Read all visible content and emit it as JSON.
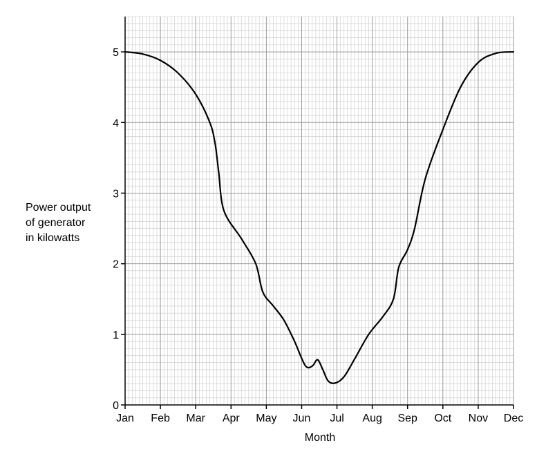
{
  "chart_data": {
    "type": "line",
    "title": "",
    "xlabel": "Month",
    "ylabel_lines": [
      "Power output",
      "of generator",
      "in kilowatts"
    ],
    "x_categories": [
      "Jan",
      "Feb",
      "Mar",
      "Apr",
      "May",
      "Jun",
      "Jul",
      "Aug",
      "Sep",
      "Oct",
      "Nov",
      "Dec"
    ],
    "xlim": [
      0,
      11
    ],
    "ylim": [
      0,
      5.5
    ],
    "y_ticks": [
      0,
      1,
      2,
      3,
      4,
      5
    ],
    "grid": true,
    "line_color": "#000000",
    "grid_major_color": "#999999",
    "grid_minor_color": "#c8c8c8",
    "series": [
      {
        "name": "",
        "points": [
          [
            0,
            5.0
          ],
          [
            0.5,
            4.97
          ],
          [
            1.0,
            4.88
          ],
          [
            1.5,
            4.7
          ],
          [
            2.0,
            4.4
          ],
          [
            2.4,
            4.0
          ],
          [
            2.55,
            3.7
          ],
          [
            2.65,
            3.3
          ],
          [
            2.8,
            2.75
          ],
          [
            3.3,
            2.35
          ],
          [
            3.7,
            2.0
          ],
          [
            3.9,
            1.6
          ],
          [
            4.2,
            1.4
          ],
          [
            4.5,
            1.2
          ],
          [
            4.8,
            0.9
          ],
          [
            5.1,
            0.56
          ],
          [
            5.3,
            0.55
          ],
          [
            5.45,
            0.64
          ],
          [
            5.6,
            0.5
          ],
          [
            5.75,
            0.34
          ],
          [
            5.95,
            0.31
          ],
          [
            6.2,
            0.4
          ],
          [
            6.5,
            0.65
          ],
          [
            6.9,
            1.0
          ],
          [
            7.3,
            1.25
          ],
          [
            7.6,
            1.5
          ],
          [
            7.75,
            1.95
          ],
          [
            8.0,
            2.2
          ],
          [
            8.2,
            2.5
          ],
          [
            8.5,
            3.2
          ],
          [
            9.0,
            3.9
          ],
          [
            9.5,
            4.5
          ],
          [
            10.0,
            4.85
          ],
          [
            10.5,
            4.98
          ],
          [
            11.0,
            5.0
          ]
        ]
      }
    ]
  }
}
